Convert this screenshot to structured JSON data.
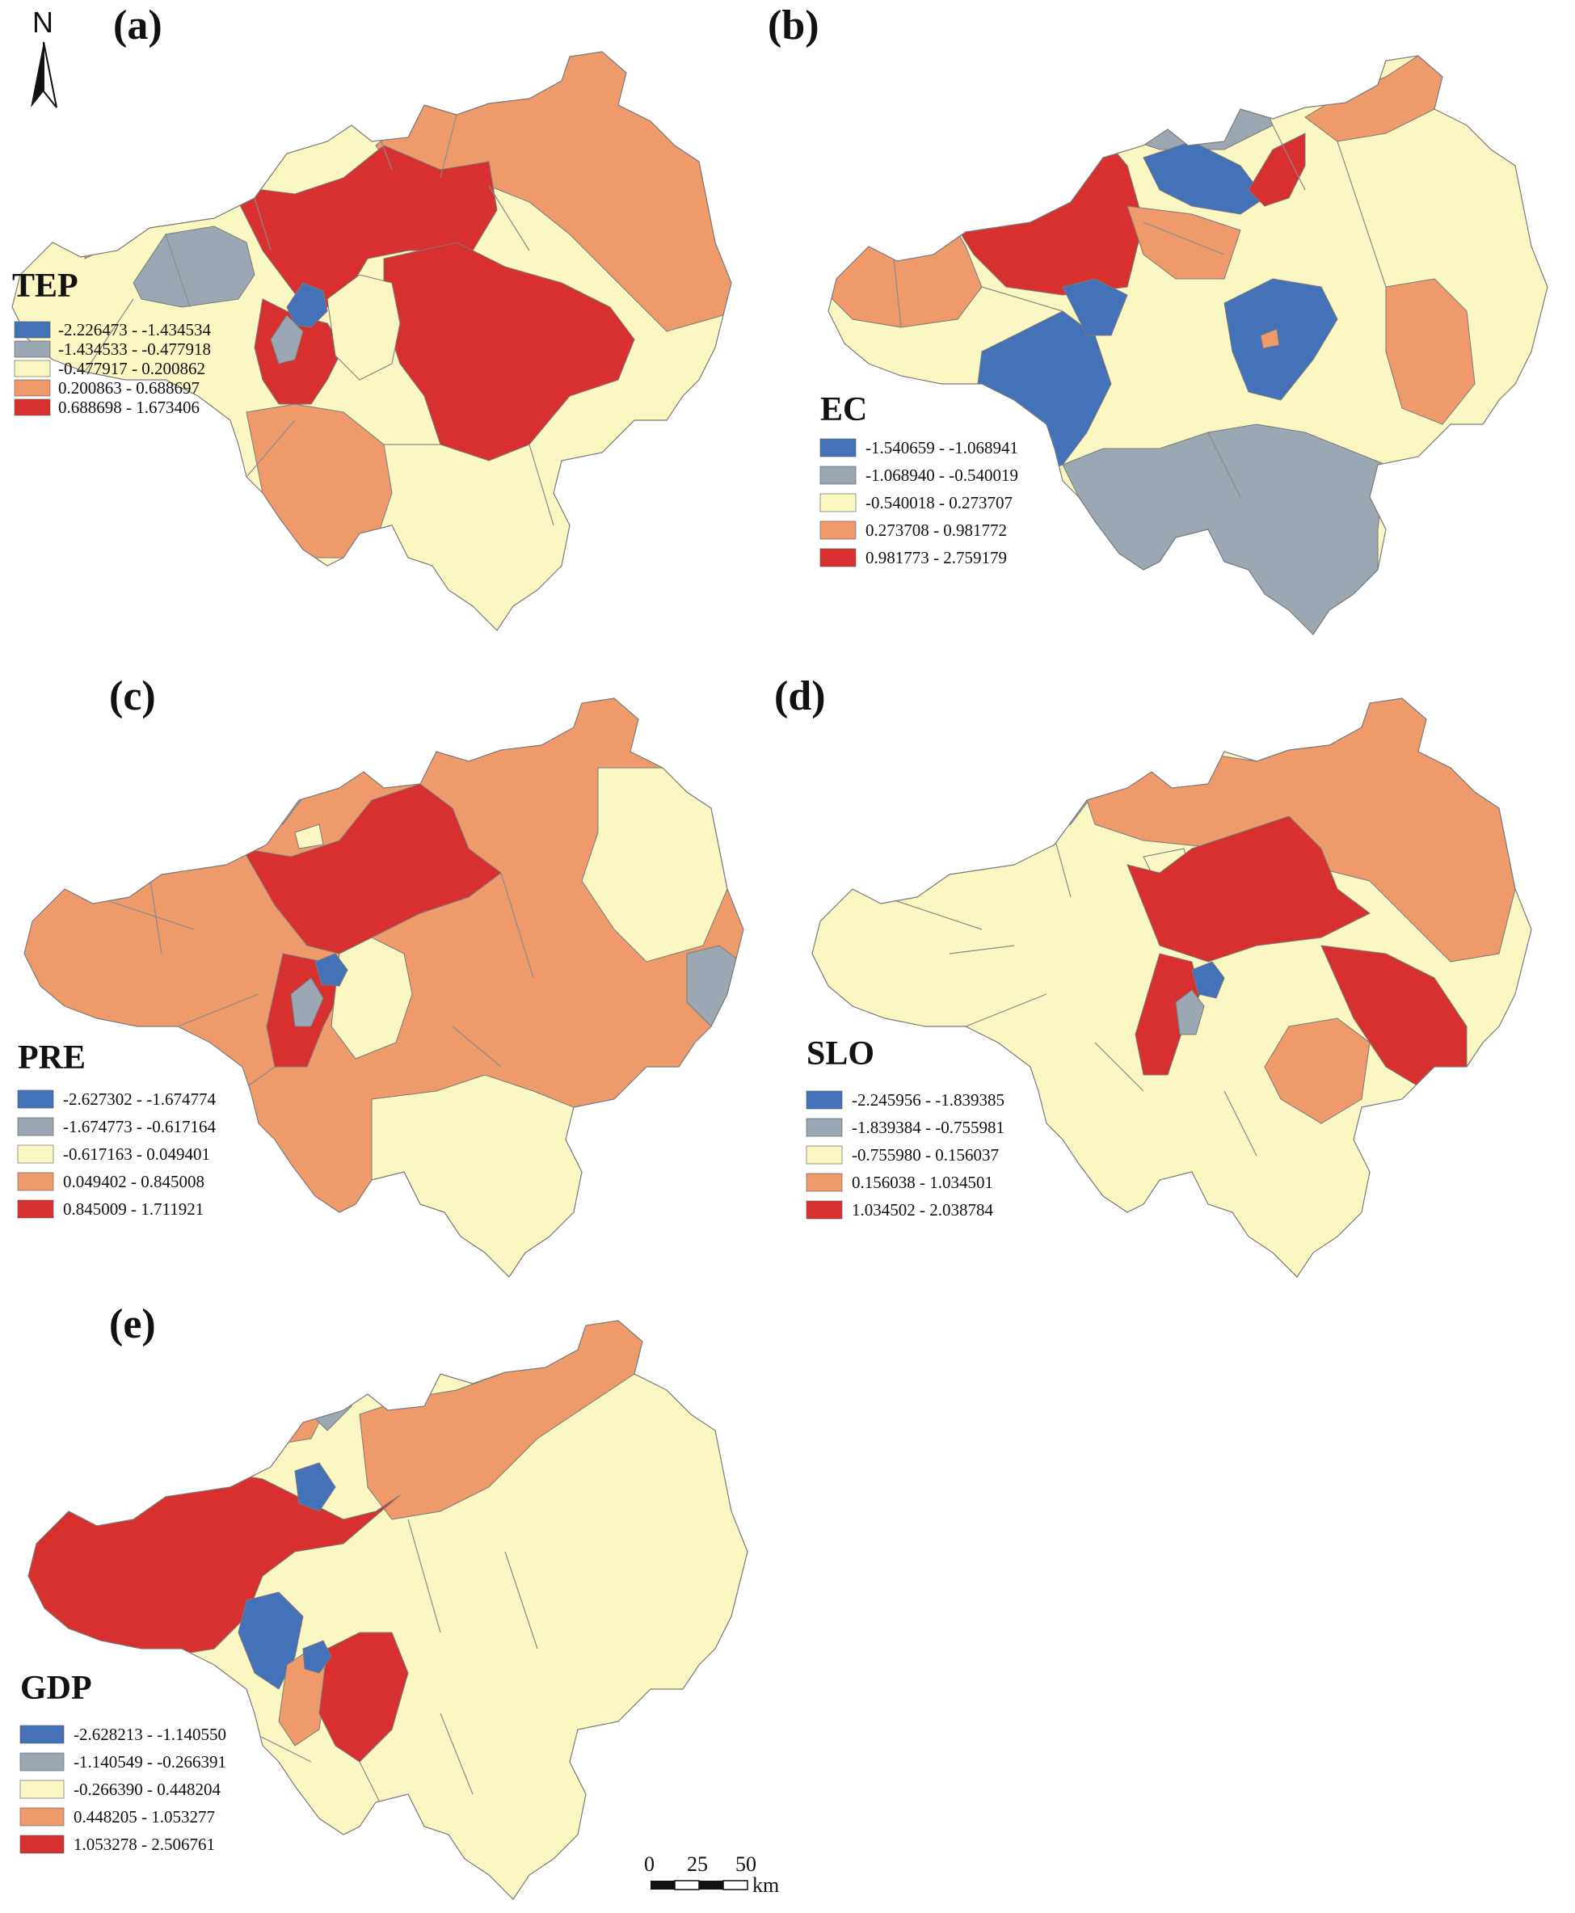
{
  "colors": {
    "class1": "#4472b8",
    "class2": "#9ba8b4",
    "class3": "#fbf7c3",
    "class4": "#ef9a6b",
    "class5": "#d7302e",
    "boundary": "#7a7a7a"
  },
  "north_arrow": {
    "label": "N"
  },
  "scale_bar": {
    "ticks": [
      "0",
      "25",
      "50"
    ],
    "unit": "km"
  },
  "panels": [
    {
      "id": "a",
      "label": "(a)",
      "variable": "TEP",
      "legend": [
        "-2.226473 - -1.434534",
        "-1.434533 - -0.477918",
        "-0.477917 - 0.200862",
        "0.200863 - 0.688697",
        "0.688698 - 1.673406"
      ]
    },
    {
      "id": "b",
      "label": "(b)",
      "variable": "EC",
      "legend": [
        "-1.540659 - -1.068941",
        "-1.068940 - -0.540019",
        "-0.540018 - 0.273707",
        "0.273708 - 0.981772",
        "0.981773 - 2.759179"
      ]
    },
    {
      "id": "c",
      "label": "(c)",
      "variable": "PRE",
      "legend": [
        "-2.627302 - -1.674774",
        "-1.674773 - -0.617164",
        "-0.617163 - 0.049401",
        "0.049402 - 0.845008",
        "0.845009 - 1.711921"
      ]
    },
    {
      "id": "d",
      "label": "(d)",
      "variable": "SLO",
      "legend": [
        "-2.245956 - -1.839385",
        "-1.839384 - -0.755981",
        "-0.755980 - 0.156037",
        "0.156038 - 1.034501",
        "1.034502 - 2.038784"
      ]
    },
    {
      "id": "e",
      "label": "(e)",
      "variable": "GDP",
      "legend": [
        "-2.628213 - -1.140550",
        "-1.140549 - -0.266391",
        "-0.266390 - 0.448204",
        "0.448205 - 1.053277",
        "1.053278 - 2.506761"
      ]
    }
  ]
}
